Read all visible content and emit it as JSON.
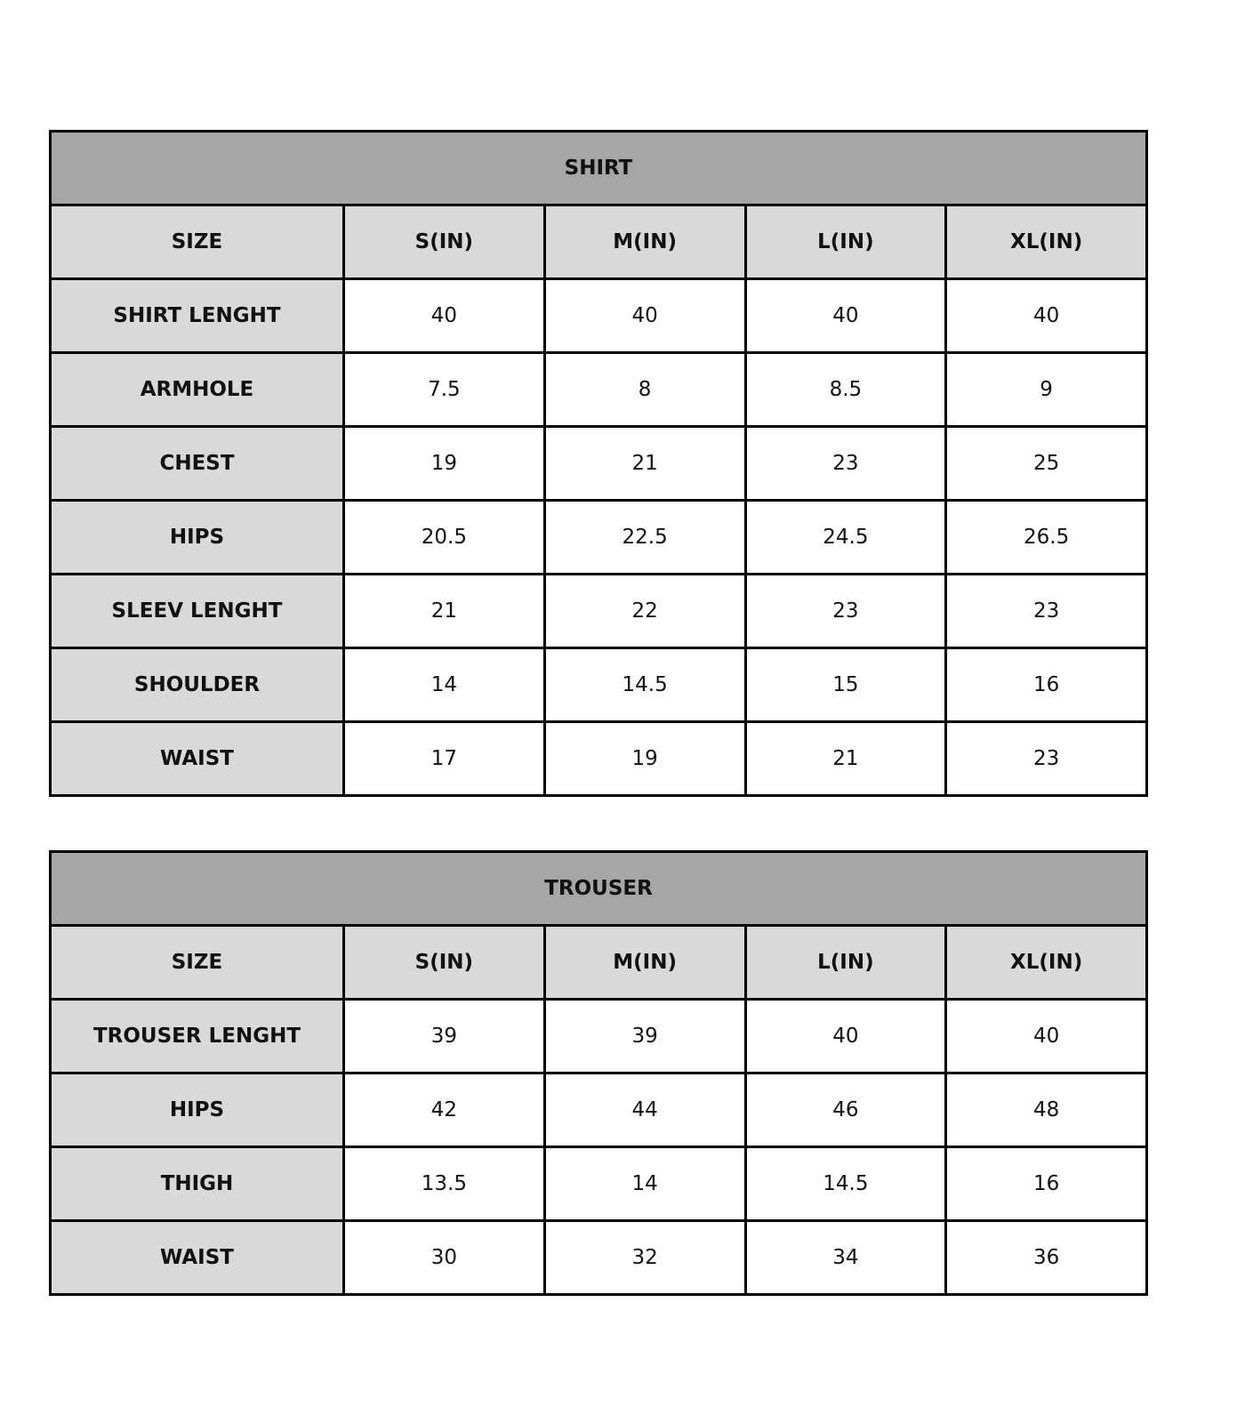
{
  "colors": {
    "title_bg": "#a6a6a6",
    "header_bg": "#d9d9d9",
    "border": "#000000"
  },
  "tables": [
    {
      "title": "SHIRT",
      "headers": [
        "SIZE",
        "S(IN)",
        "M(IN)",
        "L(IN)",
        "XL(IN)"
      ],
      "rows": [
        {
          "label": "SHIRT LENGHT",
          "values": [
            "40",
            "40",
            "40",
            "40"
          ]
        },
        {
          "label": "ARMHOLE",
          "values": [
            "7.5",
            "8",
            "8.5",
            "9"
          ]
        },
        {
          "label": "CHEST",
          "values": [
            "19",
            "21",
            "23",
            "25"
          ]
        },
        {
          "label": "HIPS",
          "values": [
            "20.5",
            "22.5",
            "24.5",
            "26.5"
          ]
        },
        {
          "label": "SLEEV LENGHT",
          "values": [
            "21",
            "22",
            "23",
            "23"
          ]
        },
        {
          "label": "SHOULDER",
          "values": [
            "14",
            "14.5",
            "15",
            "16"
          ]
        },
        {
          "label": "WAIST",
          "values": [
            "17",
            "19",
            "21",
            "23"
          ]
        }
      ]
    },
    {
      "title": "TROUSER",
      "headers": [
        "SIZE",
        "S(IN)",
        "M(IN)",
        "L(IN)",
        "XL(IN)"
      ],
      "rows": [
        {
          "label": "TROUSER LENGHT",
          "values": [
            "39",
            "39",
            "40",
            "40"
          ]
        },
        {
          "label": "HIPS",
          "values": [
            "42",
            "44",
            "46",
            "48"
          ]
        },
        {
          "label": "THIGH",
          "values": [
            "13.5",
            "14",
            "14.5",
            "16"
          ]
        },
        {
          "label": "WAIST",
          "values": [
            "30",
            "32",
            "34",
            "36"
          ]
        }
      ]
    }
  ]
}
